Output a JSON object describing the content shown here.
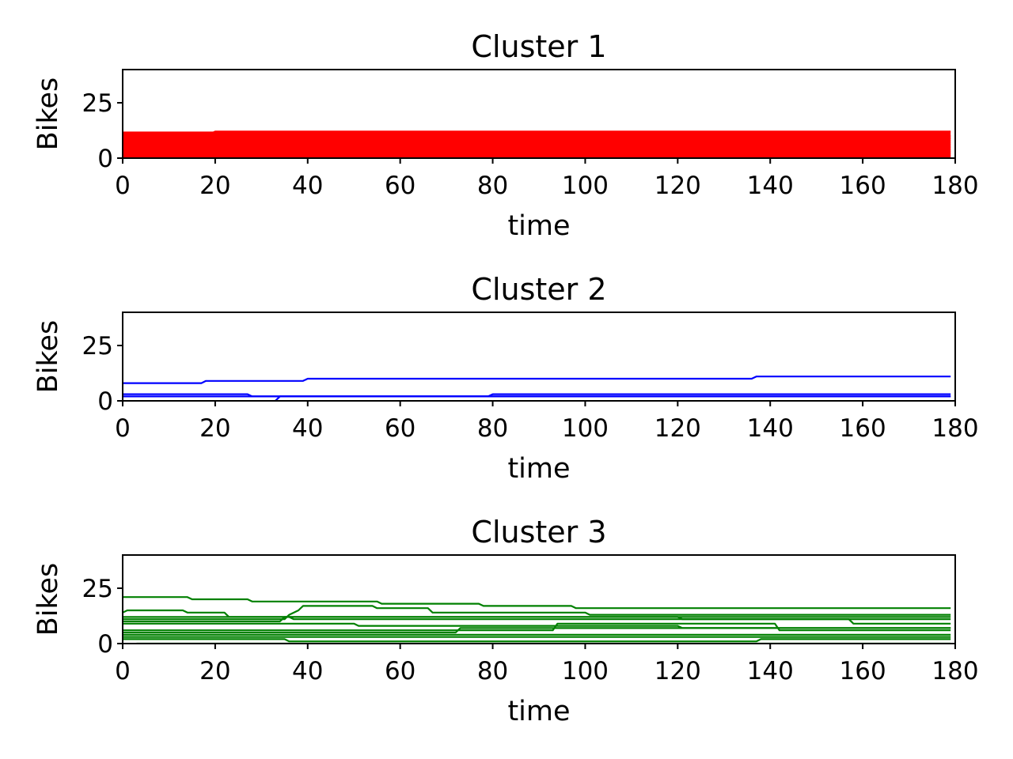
{
  "chart_data": [
    {
      "type": "line",
      "title": "Cluster 1",
      "xlabel": "time",
      "ylabel": "Bikes",
      "xlim": [
        0,
        180
      ],
      "ylim": [
        0,
        40
      ],
      "xticks": [
        "0",
        "20",
        "40",
        "60",
        "80",
        "100",
        "120",
        "140",
        "160",
        "180"
      ],
      "yticks": [
        "0",
        "25"
      ],
      "grid": false,
      "color": "#ff0000",
      "fill_band": [
        0,
        12
      ],
      "series": [
        {
          "x": [
            0,
            19,
            20,
            179
          ],
          "y": [
            11,
            11,
            12,
            12
          ]
        },
        {
          "x": [
            0,
            179
          ],
          "y": [
            10,
            10
          ]
        },
        {
          "x": [
            0,
            179
          ],
          "y": [
            9,
            9
          ]
        },
        {
          "x": [
            0,
            179
          ],
          "y": [
            8,
            8
          ]
        },
        {
          "x": [
            0,
            179
          ],
          "y": [
            7,
            7
          ]
        },
        {
          "x": [
            0,
            179
          ],
          "y": [
            6,
            6
          ]
        },
        {
          "x": [
            0,
            179
          ],
          "y": [
            5,
            5
          ]
        },
        {
          "x": [
            0,
            179
          ],
          "y": [
            4,
            4
          ]
        },
        {
          "x": [
            0,
            179
          ],
          "y": [
            3,
            3
          ]
        },
        {
          "x": [
            0,
            179
          ],
          "y": [
            2,
            2
          ]
        },
        {
          "x": [
            0,
            179
          ],
          "y": [
            1,
            1
          ]
        },
        {
          "x": [
            0,
            179
          ],
          "y": [
            0,
            0
          ]
        }
      ]
    },
    {
      "type": "line",
      "title": "Cluster 2",
      "xlabel": "time",
      "ylabel": "Bikes",
      "xlim": [
        0,
        180
      ],
      "ylim": [
        0,
        40
      ],
      "xticks": [
        "0",
        "20",
        "40",
        "60",
        "80",
        "100",
        "120",
        "140",
        "160",
        "180"
      ],
      "yticks": [
        "0",
        "25"
      ],
      "grid": false,
      "color": "#0000ff",
      "series": [
        {
          "x": [
            0,
            17,
            18,
            39,
            40,
            136,
            137,
            179
          ],
          "y": [
            8,
            8,
            9,
            9,
            10,
            10,
            11,
            11
          ]
        },
        {
          "x": [
            0,
            27,
            28,
            79,
            80,
            179
          ],
          "y": [
            3,
            3,
            2,
            2,
            3,
            3
          ]
        },
        {
          "x": [
            33,
            34,
            179
          ],
          "y": [
            0,
            2,
            2
          ]
        },
        {
          "x": [
            0,
            179
          ],
          "y": [
            2,
            2
          ]
        }
      ]
    },
    {
      "type": "line",
      "title": "Cluster 3",
      "xlabel": "time",
      "ylabel": "Bikes",
      "xlim": [
        0,
        180
      ],
      "ylim": [
        0,
        40
      ],
      "xticks": [
        "0",
        "20",
        "40",
        "60",
        "80",
        "100",
        "120",
        "140",
        "160",
        "180"
      ],
      "yticks": [
        "0",
        "25"
      ],
      "grid": false,
      "color": "#008000",
      "series": [
        {
          "x": [
            0,
            14,
            15,
            27,
            28,
            55,
            56,
            77,
            78,
            97,
            98,
            179
          ],
          "y": [
            21,
            21,
            20,
            20,
            19,
            19,
            18,
            18,
            17,
            17,
            16,
            16
          ]
        },
        {
          "x": [
            0,
            1,
            13,
            14,
            22,
            23,
            36,
            37,
            179
          ],
          "y": [
            14,
            15,
            15,
            14,
            14,
            12,
            12,
            11,
            11
          ]
        },
        {
          "x": [
            0,
            35,
            36,
            38,
            39,
            54,
            55,
            66,
            67,
            100,
            101,
            179
          ],
          "y": [
            11,
            11,
            13,
            15,
            17,
            17,
            16,
            16,
            14,
            14,
            13,
            13
          ]
        },
        {
          "x": [
            0,
            179
          ],
          "y": [
            12,
            12
          ]
        },
        {
          "x": [
            0,
            34,
            35,
            120,
            121,
            157,
            158,
            179
          ],
          "y": [
            10,
            10,
            12,
            12,
            11,
            11,
            9,
            9
          ]
        },
        {
          "x": [
            0,
            50,
            51,
            120,
            121,
            179
          ],
          "y": [
            9,
            9,
            8,
            8,
            7,
            7
          ]
        },
        {
          "x": [
            0,
            72,
            73,
            179
          ],
          "y": [
            5,
            5,
            7,
            7
          ]
        },
        {
          "x": [
            0,
            179
          ],
          "y": [
            4,
            4
          ]
        },
        {
          "x": [
            0,
            179
          ],
          "y": [
            3,
            3
          ]
        },
        {
          "x": [
            0,
            35,
            36,
            137,
            138,
            179
          ],
          "y": [
            2,
            2,
            1,
            1,
            2,
            2
          ]
        },
        {
          "x": [
            3,
            4,
            179
          ],
          "y": [
            0,
            0,
            0
          ]
        },
        {
          "x": [
            0,
            93,
            94,
            141,
            142,
            179
          ],
          "y": [
            6,
            6,
            9,
            9,
            6,
            6
          ]
        }
      ]
    }
  ]
}
